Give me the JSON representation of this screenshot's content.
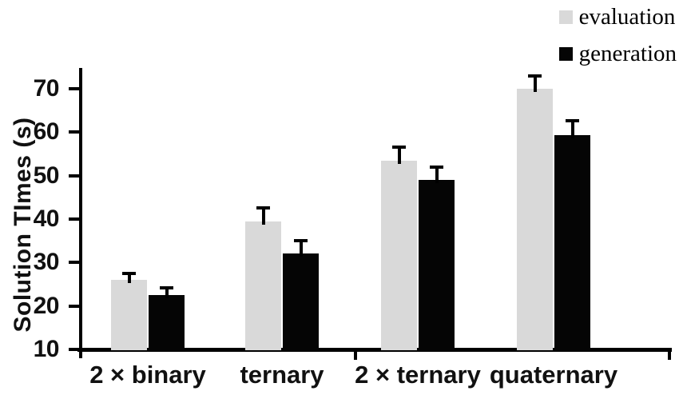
{
  "chart_data": {
    "type": "bar",
    "title": "",
    "xlabel": "",
    "ylabel": "Solution TImes (s)",
    "categories": [
      "2 × binary",
      "ternary",
      "2 × ternary",
      "quaternary"
    ],
    "series": [
      {
        "name": "evaluation",
        "color": "#d9d9d9",
        "values": [
          26,
          39.5,
          53.5,
          70
        ],
        "errors": [
          1.5,
          3,
          3,
          3
        ]
      },
      {
        "name": "generation",
        "color": "#050505",
        "values": [
          22.6,
          32.1,
          49,
          59.3
        ],
        "errors": [
          1.5,
          3,
          3,
          3.4
        ]
      }
    ],
    "y_ticks": [
      10,
      20,
      30,
      40,
      50,
      60,
      70
    ],
    "ylim": [
      10,
      74
    ],
    "error_bars": "upper only, capped",
    "legend_position": "top-right",
    "grid": false,
    "background": "#ffffff",
    "axis_color": "#000000"
  }
}
